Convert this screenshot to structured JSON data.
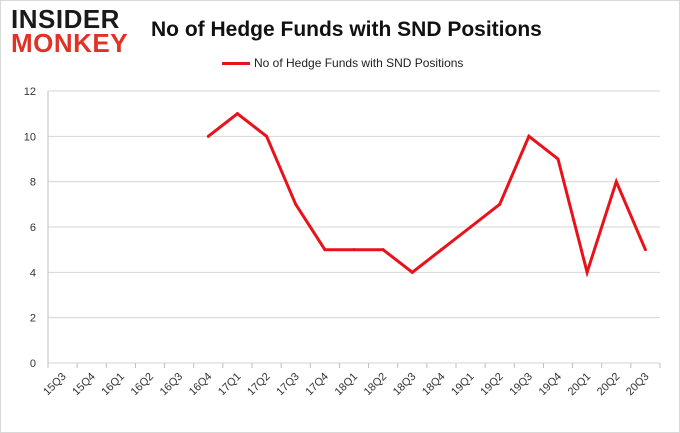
{
  "brand": {
    "line1": "INSIDER",
    "line2": "MONKEY"
  },
  "chart_data": {
    "type": "line",
    "title": "No of Hedge Funds with SND Positions",
    "xlabel": "",
    "ylabel": "",
    "categories": [
      "15Q3",
      "15Q4",
      "16Q1",
      "16Q2",
      "16Q3",
      "16Q4",
      "17Q1",
      "17Q2",
      "17Q3",
      "17Q4",
      "18Q1",
      "18Q2",
      "18Q3",
      "18Q4",
      "19Q1",
      "19Q2",
      "19Q3",
      "19Q4",
      "20Q1",
      "20Q2",
      "20Q3"
    ],
    "series": [
      {
        "name": "No of Hedge Funds with SND Positions",
        "color": "#e8121a",
        "values": [
          null,
          null,
          null,
          null,
          null,
          10,
          11,
          10,
          7,
          5,
          5,
          5,
          4,
          5,
          6,
          7,
          10,
          9,
          4,
          8,
          5
        ]
      }
    ],
    "ylim": [
      0,
      12
    ],
    "yticks": [
      0,
      2,
      4,
      6,
      8,
      10,
      12
    ],
    "grid": true,
    "legend_position": "top-center"
  }
}
